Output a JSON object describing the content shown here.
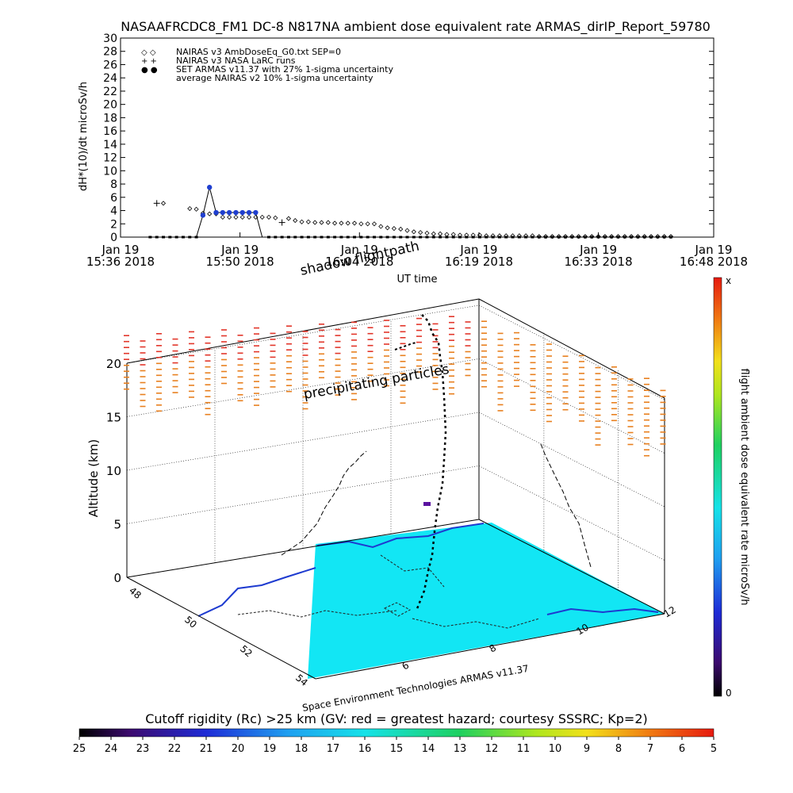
{
  "chart_data": [
    {
      "type": "scatter",
      "title": "NASAAFRCDC8_FM1 DC-8   N817NA ambient dose equivalent rate ARMAS_dirIP_Report_59780",
      "ylabel": "dH*(10)/dt microSv/h",
      "xlabel": "UT time",
      "ylim": [
        0,
        30
      ],
      "yticks": [
        0,
        2,
        4,
        6,
        8,
        10,
        12,
        14,
        16,
        18,
        20,
        22,
        24,
        26,
        28,
        30
      ],
      "xlim_minutes": [
        0,
        72
      ],
      "xticks": [
        {
          "label": "Jan 19\n15:36 2018",
          "minute": 0
        },
        {
          "label": "Jan 19\n15:50 2018",
          "minute": 14.5
        },
        {
          "label": "Jan 19\n16:04 2018",
          "minute": 29
        },
        {
          "label": "Jan 19\n16:19 2018",
          "minute": 43.5
        },
        {
          "label": "Jan 19\n16:33 2018",
          "minute": 58
        },
        {
          "label": "Jan 19\n16:48 2018",
          "minute": 72
        }
      ],
      "legend": {
        "placement": "top-left",
        "entries": [
          {
            "symbol": "◇ ◇",
            "label": "NAIRAS v3 AmbDoseEq_G0.txt SEP=0"
          },
          {
            "symbol": "+ +",
            "label": "NAIRAS v3 NASA LaRC runs"
          },
          {
            "symbol": "● ●",
            "label": "SET ARMAS v11.37 with 27% 1-sigma uncertainty",
            "color": "#1f3fd0"
          },
          {
            "symbol": "",
            "label": "average NAIRAS v2 10% 1-sigma uncertainty"
          }
        ]
      },
      "series": [
        {
          "name": "NAIRAS v3 AmbDoseEq_G0.txt SEP=0",
          "marker": "diamond",
          "x": [
            5.2,
            8.4,
            9.2,
            10.0,
            10.8,
            11.6,
            12.4,
            13.2,
            14.0,
            14.8,
            15.6,
            16.4,
            17.2,
            18.0,
            18.8,
            20.4,
            21.2,
            22.0,
            22.8,
            23.6,
            24.4,
            25.2,
            26.0,
            26.8,
            27.6,
            28.4,
            29.2,
            30.0,
            30.8,
            31.6,
            32.4,
            33.2,
            34.0,
            34.8,
            35.6,
            36.4,
            37.2,
            38.0,
            38.8,
            39.6,
            40.4,
            41.2,
            42.0,
            42.8,
            43.6,
            44.4,
            45.2,
            46.0,
            46.8,
            47.6,
            48.4,
            49.2,
            50.0,
            50.8,
            51.6,
            52.4,
            53.2,
            54.0,
            54.8,
            55.6,
            56.4,
            57.2,
            58.0,
            58.8,
            59.6,
            60.4,
            61.2,
            62.0,
            62.8,
            63.6,
            64.4,
            65.2,
            66.0,
            66.8
          ],
          "y": [
            5.1,
            4.3,
            4.2,
            3.6,
            3.5,
            3.5,
            3.0,
            3.0,
            3.0,
            3.0,
            3.0,
            3.0,
            3.0,
            3.0,
            2.9,
            2.8,
            2.5,
            2.3,
            2.3,
            2.2,
            2.2,
            2.2,
            2.1,
            2.1,
            2.1,
            2.1,
            2.0,
            2.0,
            2.0,
            1.6,
            1.4,
            1.3,
            1.2,
            1.0,
            0.8,
            0.7,
            0.6,
            0.5,
            0.5,
            0.4,
            0.4,
            0.3,
            0.3,
            0.3,
            0.3,
            0.2,
            0.2,
            0.2,
            0.2,
            0.2,
            0.2,
            0.2,
            0.2,
            0.1,
            0.1,
            0.1,
            0.1,
            0.1,
            0.1,
            0.1,
            0.1,
            0.1,
            0.1,
            0.1,
            0.1,
            0.1,
            0.1,
            0.1,
            0.1,
            0.1,
            0.1,
            0.1,
            0.1,
            0.1
          ]
        },
        {
          "name": "NAIRAS v3 NASA LaRC runs",
          "marker": "plus",
          "x": [
            4.4,
            19.6
          ],
          "y": [
            5.1,
            2.2
          ]
        },
        {
          "name": "SET ARMAS v11.37 with 27% 1-sigma uncertainty",
          "marker": "dot",
          "color": "#1f3fd0",
          "x": [
            8.4,
            9.2,
            10.0,
            10.8,
            11.6,
            12.4,
            13.2,
            14.0,
            14.8,
            15.6,
            16.4,
            17.2
          ],
          "y": [
            0,
            0,
            3.3,
            7.5,
            3.7,
            3.7,
            3.7,
            3.7,
            3.7,
            3.7,
            3.7,
            0
          ]
        }
      ],
      "baseline_marker_minutes": [
        3.6,
        4.4,
        5.2,
        6.0,
        6.8,
        7.6,
        8.4,
        9.2,
        18.0,
        18.8,
        19.6,
        20.4,
        21.2,
        22.0,
        22.8,
        23.6,
        24.4,
        25.2,
        26.0,
        26.8,
        27.6,
        28.4,
        29.2,
        30.0,
        30.8,
        31.6,
        32.4,
        33.2,
        34.0,
        34.8,
        35.6,
        36.4,
        37.2,
        38.0,
        38.8,
        39.6,
        40.4,
        41.2,
        42.0,
        42.8,
        43.6,
        44.4,
        45.2,
        46.0,
        46.8,
        47.6,
        48.4,
        49.2,
        50.0,
        50.8,
        51.6,
        52.4,
        53.2,
        54.0,
        54.8,
        55.6,
        56.4,
        57.2,
        58.0,
        58.8,
        59.6,
        60.4,
        61.2,
        62.0,
        62.8,
        63.6,
        64.4,
        65.2,
        66.0,
        66.8
      ]
    },
    {
      "type": "scatter",
      "ylabel": "Altitude (km)",
      "zticks": [
        0,
        5,
        10,
        15,
        20
      ],
      "lat_ticks": [
        "48",
        "50",
        "52",
        "54"
      ],
      "lon_ticks": [
        "6",
        "8",
        "10",
        "12"
      ],
      "annotations": {
        "shadow": "shadow flightpath",
        "particles": "precipitating particles",
        "credit": "Space Environment Technologies ARMAS v11.37",
        "time_axis": "UT time"
      },
      "colorbar": {
        "label": "flight ambient dose equivalent rate microSv/h",
        "max_label": "x",
        "min_label": "0"
      }
    },
    {
      "type": "heatmap",
      "title": "Cutoff rigidity (Rc) >25 km (GV: red = greatest hazard; courtesy SSSRC; Kp=2)",
      "ticks": [
        "25",
        "24",
        "23",
        "22",
        "21",
        "20",
        "19",
        "18",
        "17",
        "16",
        "15",
        "14",
        "13",
        "12",
        "11",
        "10",
        "9",
        "8",
        "7",
        "6",
        "5"
      ]
    }
  ],
  "colors": {
    "ocean": "#12e6f4",
    "armas": "#1f3fd0",
    "particles_red": "#e2362a",
    "particles_orange": "#e8801f"
  }
}
